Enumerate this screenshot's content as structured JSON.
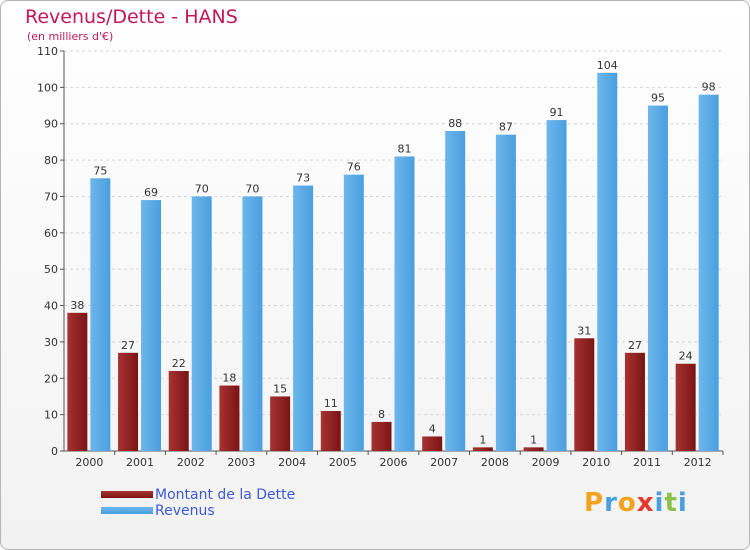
{
  "title": "Revenus/Dette - HANS",
  "subtitle": "(en milliers d'€)",
  "colors": {
    "debt": "#7a1414",
    "debt_light": "#a83232",
    "revenue": "#4a9fe0",
    "revenue_light": "#6db6ec",
    "title": "#c2185b",
    "legend_text": "#3c5ad7"
  },
  "chart_data": {
    "type": "bar",
    "title": "Revenus/Dette - HANS",
    "ylabel": "(en milliers d'€)",
    "xlabel": "",
    "ylim": [
      0,
      110
    ],
    "yticks": [
      0,
      10,
      20,
      30,
      40,
      50,
      60,
      70,
      80,
      90,
      100,
      110
    ],
    "categories": [
      "2000",
      "2001",
      "2002",
      "2003",
      "2004",
      "2005",
      "2006",
      "2007",
      "2008",
      "2009",
      "2010",
      "2011",
      "2012"
    ],
    "series": [
      {
        "name": "Montant de la Dette",
        "values": [
          38,
          27,
          22,
          18,
          15,
          11,
          8,
          4,
          1,
          1,
          31,
          27,
          24
        ]
      },
      {
        "name": "Revenus",
        "values": [
          75,
          69,
          70,
          70,
          73,
          76,
          81,
          88,
          87,
          91,
          104,
          95,
          98
        ]
      }
    ],
    "legend": "bottom-left",
    "grid": true
  },
  "logo": {
    "letters": [
      "P",
      "r",
      "o",
      "x",
      "i",
      "t",
      "i"
    ],
    "colors": [
      "#f4a21b",
      "#4a9fe0",
      "#f4a21b",
      "#e8372b",
      "#4a9fe0",
      "#8bc34a",
      "#4a9fe0"
    ]
  }
}
